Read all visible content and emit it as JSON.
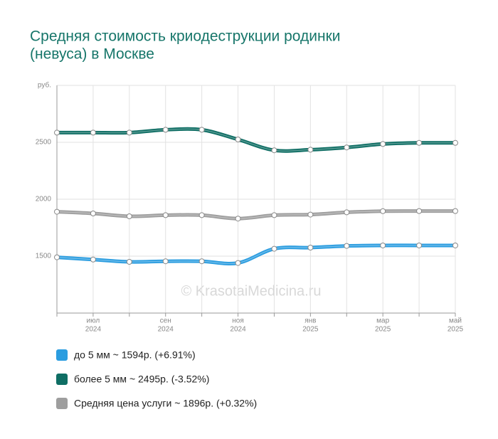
{
  "chart_data": {
    "type": "line",
    "title": [
      "Средняя стоимость криодеструкции родинки",
      "(невуса) в Москве"
    ],
    "watermark": "© KrasotaiMedicina.ru",
    "categories": [
      null,
      "июл",
      null,
      "сен",
      null,
      "ноя",
      null,
      "янв",
      null,
      "мар",
      null,
      "май"
    ],
    "category_years": [
      null,
      "2024",
      null,
      "2024",
      null,
      "2024",
      null,
      "2025",
      null,
      "2025",
      null,
      "2025"
    ],
    "series": [
      {
        "name": "до 5 мм ~ 1594р. (+6.91%)",
        "color": "#2b9de0",
        "values": [
          1490,
          1470,
          1450,
          1455,
          1455,
          1440,
          1565,
          1575,
          1590,
          1594,
          1594,
          1594
        ]
      },
      {
        "name": "более 5 мм ~ 2495р. (-3.52%)",
        "color": "#0f6e64",
        "values": [
          2585,
          2585,
          2585,
          2610,
          2610,
          2525,
          2430,
          2435,
          2455,
          2485,
          2495,
          2495
        ]
      },
      {
        "name": "Средняя цена услуги ~ 1896р. (+0.32%)",
        "color": "#9e9e9e",
        "values": [
          1890,
          1875,
          1850,
          1860,
          1860,
          1830,
          1860,
          1865,
          1885,
          1895,
          1896,
          1896
        ]
      }
    ],
    "ylim": [
      1000,
      3000
    ],
    "yticks": [
      1500,
      2000,
      2500,
      {
        "value": 3000,
        "label": "руб."
      }
    ],
    "grid": true
  }
}
